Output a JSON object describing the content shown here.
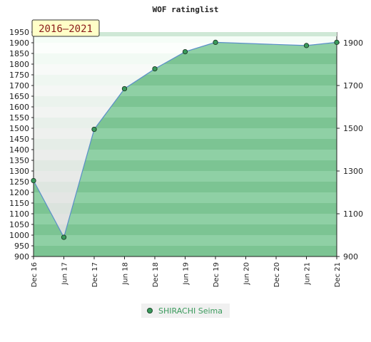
{
  "chart_data": {
    "type": "area",
    "title": "WOF ratinglist",
    "badge": "2016–2021",
    "x_ticks": [
      "Dec 16",
      "Jun 17",
      "Dec 17",
      "Jun 18",
      "Dec 18",
      "Jun 19",
      "Dec 19",
      "Jun 20",
      "Dec 20",
      "Jun 21",
      "Dec 21"
    ],
    "y_left_ticks": [
      900,
      950,
      1000,
      1050,
      1100,
      1150,
      1200,
      1250,
      1300,
      1350,
      1400,
      1450,
      1500,
      1550,
      1600,
      1650,
      1700,
      1750,
      1800,
      1850,
      1900,
      1950
    ],
    "y_right_ticks": [
      900,
      1100,
      1300,
      1500,
      1700,
      1900
    ],
    "ylim": [
      900,
      1950
    ],
    "series": [
      {
        "name": "SHIRACHI Seima",
        "color": "#3a9a5c",
        "line_color": "#5b8fc9",
        "x": [
          "Dec 16",
          "Jun 17",
          "Dec 17",
          "Jun 18",
          "Dec 18",
          "Jun 19",
          "Dec 19",
          "Jun 21",
          "Dec 21"
        ],
        "values": [
          1255,
          990,
          1495,
          1685,
          1778,
          1858,
          1902,
          1887,
          1902
        ]
      }
    ],
    "legend_position": "bottom-center",
    "grid": false
  }
}
